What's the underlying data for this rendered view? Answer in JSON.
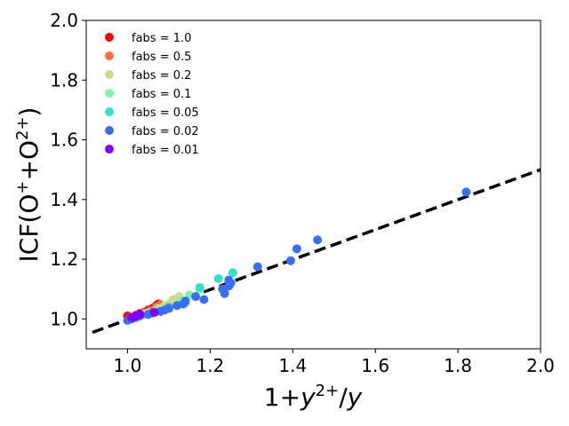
{
  "chart_data": {
    "type": "scatter",
    "title": "",
    "xlabel_parts": [
      "1+",
      "y",
      "2+",
      "/",
      "y"
    ],
    "ylabel_parts": [
      "ICF(O",
      "+",
      "+O",
      "2+",
      ")"
    ],
    "xlim": [
      0.9,
      2.0
    ],
    "ylim": [
      0.9,
      2.0
    ],
    "xticks": [
      1.0,
      1.2,
      1.4,
      1.6,
      1.8,
      2.0
    ],
    "xtick_labels": [
      "1.0",
      "1.2",
      "1.4",
      "1.6",
      "1.8",
      "2.0"
    ],
    "yticks": [
      1.0,
      1.2,
      1.4,
      1.6,
      1.8,
      2.0
    ],
    "ytick_labels": [
      "1.0",
      "1.2",
      "1.4",
      "1.6",
      "1.8",
      "2.0"
    ],
    "grid": false,
    "legend_position": "top-left",
    "fit_line": {
      "style": "dashed",
      "color": "#000000",
      "points": [
        [
          0.915,
          0.955
        ],
        [
          2.0,
          1.5
        ]
      ]
    },
    "series": [
      {
        "name": "fabs = 1.0",
        "label": "fabs = 1.0",
        "color": "#ff0000",
        "points": [
          [
            1.0,
            1.01
          ],
          [
            1.01,
            1.005
          ],
          [
            1.02,
            1.012
          ],
          [
            1.03,
            1.018
          ],
          [
            1.04,
            1.022
          ],
          [
            1.05,
            1.03
          ],
          [
            1.06,
            1.035
          ],
          [
            1.07,
            1.045
          ],
          [
            1.075,
            1.05
          ]
        ]
      },
      {
        "name": "fabs = 0.5",
        "label": "fabs = 0.5",
        "color": "#ff7043",
        "points": [
          [
            1.01,
            1.006
          ],
          [
            1.02,
            1.01
          ],
          [
            1.04,
            1.02
          ],
          [
            1.055,
            1.028
          ],
          [
            1.07,
            1.04
          ],
          [
            1.08,
            1.048
          ]
        ]
      },
      {
        "name": "fabs = 0.2",
        "label": "fabs = 0.2",
        "color": "#c8e08a",
        "points": [
          [
            1.02,
            1.008
          ],
          [
            1.05,
            1.02
          ],
          [
            1.075,
            1.035
          ],
          [
            1.09,
            1.045
          ],
          [
            1.1,
            1.05
          ],
          [
            1.11,
            1.065
          ],
          [
            1.125,
            1.075
          ]
        ]
      },
      {
        "name": "fabs = 0.1",
        "label": "fabs = 0.1",
        "color": "#7df5a8",
        "points": [
          [
            1.04,
            1.015
          ],
          [
            1.07,
            1.03
          ],
          [
            1.1,
            1.04
          ],
          [
            1.13,
            1.06
          ],
          [
            1.15,
            1.08
          ],
          [
            1.175,
            1.1
          ]
        ]
      },
      {
        "name": "fabs = 0.05",
        "label": "fabs = 0.05",
        "color": "#33e0cf",
        "points": [
          [
            1.06,
            1.02
          ],
          [
            1.1,
            1.04
          ],
          [
            1.14,
            1.055
          ],
          [
            1.175,
            1.105
          ],
          [
            1.22,
            1.135
          ],
          [
            1.255,
            1.155
          ]
        ]
      },
      {
        "name": "fabs = 0.02",
        "label": "fabs = 0.02",
        "color": "#3a6ff5",
        "points": [
          [
            1.0,
            0.995
          ],
          [
            1.01,
            1.0
          ],
          [
            1.02,
            1.005
          ],
          [
            1.03,
            1.01
          ],
          [
            1.05,
            1.015
          ],
          [
            1.06,
            1.02
          ],
          [
            1.08,
            1.025
          ],
          [
            1.09,
            1.03
          ],
          [
            1.1,
            1.035
          ],
          [
            1.12,
            1.045
          ],
          [
            1.135,
            1.05
          ],
          [
            1.14,
            1.06
          ],
          [
            1.165,
            1.075
          ],
          [
            1.185,
            1.065
          ],
          [
            1.23,
            1.1
          ],
          [
            1.235,
            1.085
          ],
          [
            1.245,
            1.11
          ],
          [
            1.245,
            1.13
          ],
          [
            1.25,
            1.12
          ],
          [
            1.315,
            1.175
          ],
          [
            1.395,
            1.195
          ],
          [
            1.41,
            1.235
          ],
          [
            1.46,
            1.265
          ],
          [
            1.82,
            1.425
          ]
        ]
      },
      {
        "name": "fabs = 0.01",
        "label": "fabs = 0.01",
        "color": "#7f00ff",
        "points": [
          [
            1.01,
            1.005
          ],
          [
            1.02,
            1.01
          ],
          [
            1.03,
            1.015
          ],
          [
            1.065,
            1.022
          ]
        ]
      }
    ]
  }
}
